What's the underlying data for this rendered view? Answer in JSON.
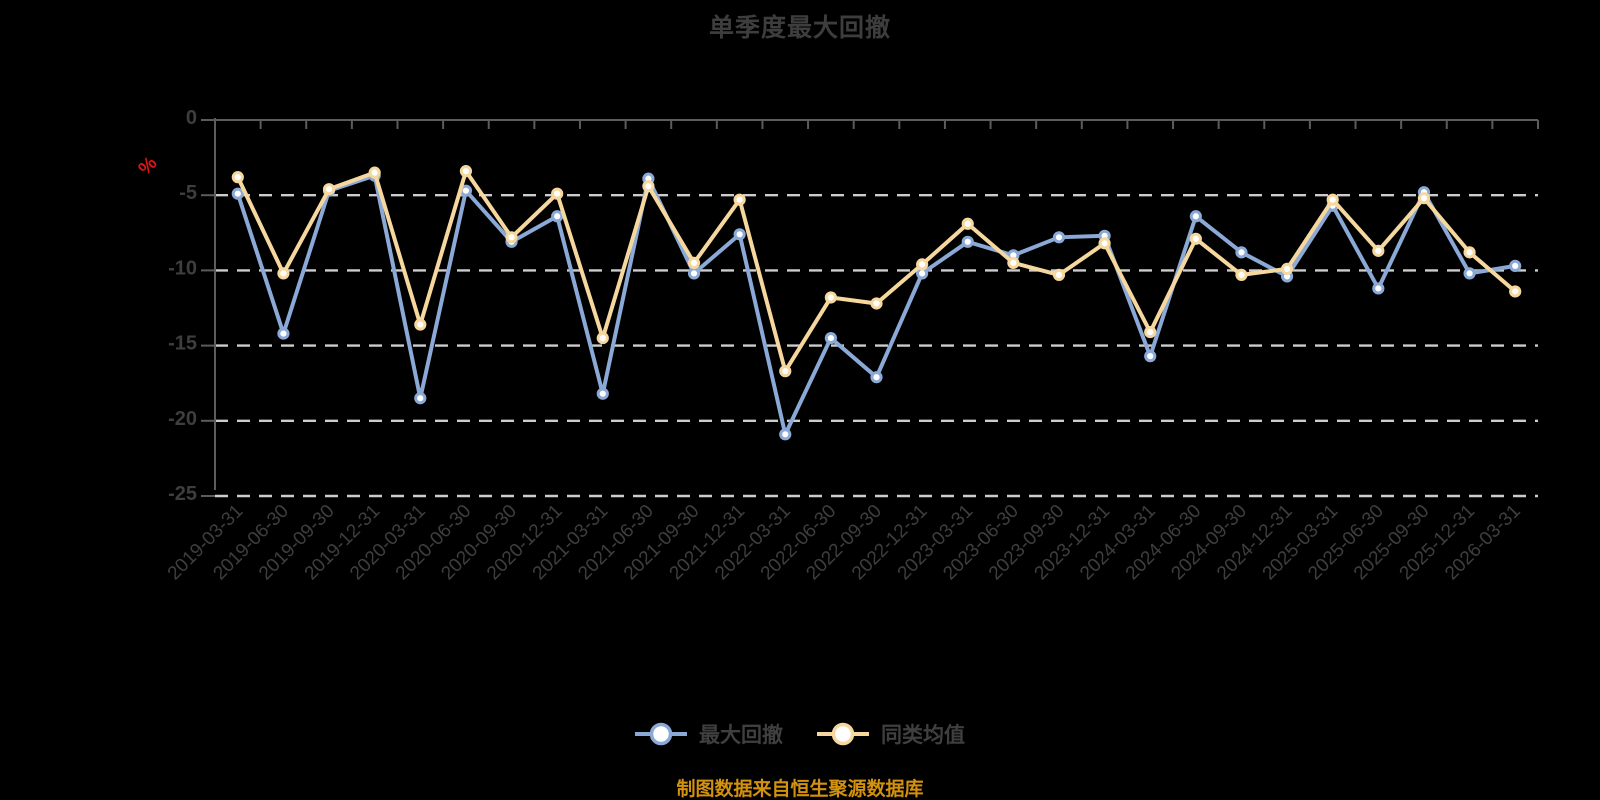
{
  "title": "单季度最大回撤",
  "source_note": "制图数据来自恒生聚源数据库",
  "legend": {
    "items": [
      {
        "label": "最大回撤"
      },
      {
        "label": "同类均值"
      }
    ]
  },
  "colors": {
    "background": "#000000",
    "title_text": "#3d3d3d",
    "axis_line": "#5c5c5c",
    "tick_label": "#3e3e3e",
    "gridline": "#cccccc",
    "unit_label_red": "#e01414",
    "source_text": "#d2910e",
    "series_max_drawdown": "#8aa9d6",
    "series_peer_average": "#f6d89e",
    "marker_fill": "#ffffff"
  },
  "chart_data": {
    "type": "line",
    "title": "单季度最大回撤",
    "xlabel": "",
    "ylabel": "%",
    "ylim": [
      -25,
      0
    ],
    "yticks": [
      0,
      -5,
      -10,
      -15,
      -20,
      -25
    ],
    "ytick_labels": [
      "0",
      "-5",
      "-10",
      "-15",
      "-20",
      "-25"
    ],
    "grid": "horizontal-dashed",
    "legend_position": "bottom",
    "x": [
      "2019-03-31",
      "2019-06-30",
      "2019-09-30",
      "2019-12-31",
      "2020-03-31",
      "2020-06-30",
      "2020-09-30",
      "2020-12-31",
      "2021-03-31",
      "2021-06-30",
      "2021-09-30",
      "2021-12-31",
      "2022-03-31",
      "2022-06-30",
      "2022-09-30",
      "2022-12-31",
      "2023-03-31",
      "2023-06-30",
      "2023-09-30",
      "2023-12-31",
      "2024-03-31",
      "2024-06-30",
      "2024-09-30",
      "2024-12-31",
      "2025-03-31",
      "2025-06-30",
      "2025-09-30",
      "2025-12-31",
      "2026-03-31"
    ],
    "series": [
      {
        "name": "最大回撤",
        "color": "#8aa9d6",
        "values": [
          -4.9,
          -14.2,
          -4.7,
          -3.7,
          -18.5,
          -4.7,
          -8.1,
          -6.4,
          -18.2,
          -3.9,
          -10.2,
          -7.6,
          -20.9,
          -14.5,
          -17.1,
          -10.2,
          -8.1,
          -9.0,
          -7.8,
          -7.7,
          -15.7,
          -6.4,
          -8.8,
          -10.4,
          -5.7,
          -11.2,
          -4.8,
          -10.2,
          -9.7
        ]
      },
      {
        "name": "同类均值",
        "color": "#f6d89e",
        "values": [
          -3.8,
          -10.2,
          -4.6,
          -3.5,
          -13.6,
          -3.4,
          -7.8,
          -4.9,
          -14.5,
          -4.4,
          -9.5,
          -5.3,
          -16.7,
          -11.8,
          -12.2,
          -9.6,
          -6.9,
          -9.5,
          -10.3,
          -8.2,
          -14.1,
          -7.9,
          -10.3,
          -9.9,
          -5.3,
          -8.7,
          -5.2,
          -8.8,
          -11.4
        ]
      }
    ]
  }
}
